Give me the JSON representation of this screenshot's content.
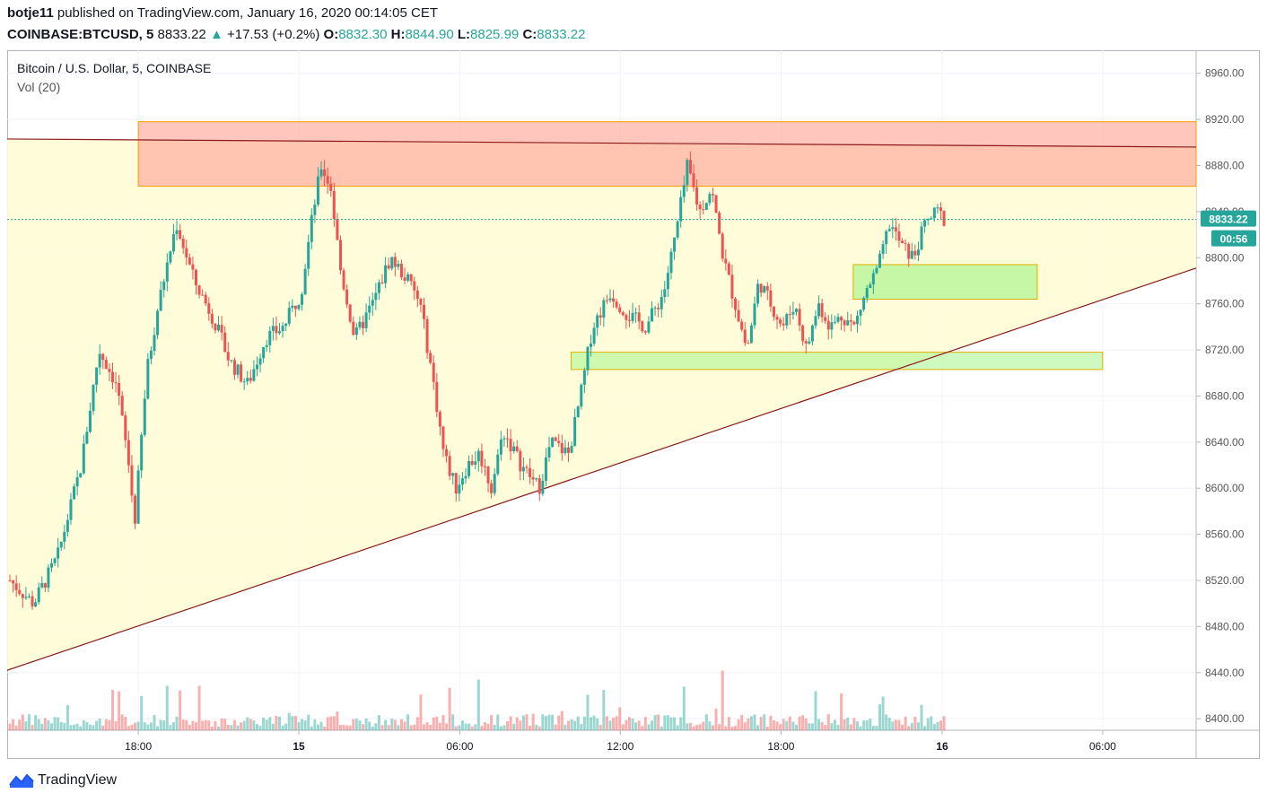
{
  "header": {
    "author": "botje11",
    "published_text": "published on TradingView.com, January 16, 2020 00:14:05 CET",
    "symbol": "COINBASE:BTCUSD, 5",
    "price": "8833.22",
    "change": "+17.53 (+0.2%)",
    "o_label": "O:",
    "o_value": "8832.30",
    "h_label": "H:",
    "h_value": "8844.90",
    "l_label": "L:",
    "l_value": "8825.99",
    "c_label": "C:",
    "c_value": "8833.22"
  },
  "legend": {
    "title": "Bitcoin / U.S. Dollar, 5, COINBASE",
    "indicator": "Vol (20)"
  },
  "price_badge": "8833.22",
  "timer_badge": "00:56",
  "footer": {
    "brand": "TradingView"
  },
  "colors": {
    "up": "#26a69a",
    "down": "#ef5350",
    "triangle_fill": "#fffcd6",
    "resistance_fill": "#ffb3a8",
    "support_fill": "#b3f598",
    "trendline": "#8b1a1a"
  },
  "chart_data": {
    "type": "candlestick",
    "title": "Bitcoin / U.S. Dollar, 5, COINBASE",
    "ylim": [
      8390,
      8980
    ],
    "y_ticks": [
      8400,
      8440,
      8480,
      8520,
      8560,
      8600,
      8640,
      8680,
      8720,
      8760,
      8800,
      8840,
      8880,
      8920,
      8960
    ],
    "x_ticks": [
      {
        "label": "18:00",
        "x": 0.1103
      },
      {
        "label": "15",
        "x": 0.2453
      },
      {
        "label": "06:00",
        "x": 0.3807
      },
      {
        "label": "12:00",
        "x": 0.5157
      },
      {
        "label": "18:00",
        "x": 0.6509
      },
      {
        "label": "16",
        "x": 0.7864
      },
      {
        "label": "06:00",
        "x": 0.9214
      }
    ],
    "price_path": [
      [
        0.0,
        8520
      ],
      [
        0.02,
        8500
      ],
      [
        0.04,
        8540
      ],
      [
        0.06,
        8620
      ],
      [
        0.075,
        8720
      ],
      [
        0.09,
        8690
      ],
      [
        0.1,
        8620
      ],
      [
        0.105,
        8570
      ],
      [
        0.115,
        8700
      ],
      [
        0.125,
        8760
      ],
      [
        0.14,
        8830
      ],
      [
        0.155,
        8780
      ],
      [
        0.17,
        8750
      ],
      [
        0.185,
        8710
      ],
      [
        0.2,
        8690
      ],
      [
        0.215,
        8730
      ],
      [
        0.23,
        8740
      ],
      [
        0.245,
        8770
      ],
      [
        0.255,
        8840
      ],
      [
        0.262,
        8880
      ],
      [
        0.27,
        8860
      ],
      [
        0.278,
        8790
      ],
      [
        0.29,
        8730
      ],
      [
        0.305,
        8760
      ],
      [
        0.32,
        8800
      ],
      [
        0.335,
        8780
      ],
      [
        0.345,
        8760
      ],
      [
        0.355,
        8700
      ],
      [
        0.365,
        8630
      ],
      [
        0.375,
        8600
      ],
      [
        0.385,
        8620
      ],
      [
        0.395,
        8630
      ],
      [
        0.405,
        8600
      ],
      [
        0.415,
        8650
      ],
      [
        0.43,
        8620
      ],
      [
        0.445,
        8600
      ],
      [
        0.455,
        8640
      ],
      [
        0.47,
        8630
      ],
      [
        0.48,
        8680
      ],
      [
        0.49,
        8740
      ],
      [
        0.505,
        8770
      ],
      [
        0.52,
        8750
      ],
      [
        0.535,
        8740
      ],
      [
        0.55,
        8770
      ],
      [
        0.56,
        8820
      ],
      [
        0.57,
        8880
      ],
      [
        0.58,
        8840
      ],
      [
        0.59,
        8860
      ],
      [
        0.6,
        8800
      ],
      [
        0.61,
        8760
      ],
      [
        0.62,
        8720
      ],
      [
        0.63,
        8780
      ],
      [
        0.64,
        8760
      ],
      [
        0.65,
        8740
      ],
      [
        0.66,
        8760
      ],
      [
        0.67,
        8720
      ],
      [
        0.68,
        8760
      ],
      [
        0.69,
        8740
      ],
      [
        0.7,
        8750
      ],
      [
        0.71,
        8740
      ],
      [
        0.72,
        8770
      ],
      [
        0.73,
        8790
      ],
      [
        0.74,
        8830
      ],
      [
        0.75,
        8810
      ],
      [
        0.76,
        8800
      ],
      [
        0.77,
        8830
      ],
      [
        0.78,
        8840
      ],
      [
        0.786,
        8833
      ]
    ],
    "annotations": {
      "resistance_zone": {
        "y": [
          8862,
          8918
        ],
        "x": [
          0.1103,
          1.0
        ]
      },
      "support_zone_1": {
        "y": [
          8764,
          8794
        ],
        "x": [
          0.7116,
          0.8664
        ]
      },
      "support_zone_2": {
        "y": [
          8703,
          8718
        ],
        "x": [
          0.4743,
          0.9214
        ]
      },
      "trendline_top": {
        "points": [
          [
            0.0,
            8903
          ],
          [
            1.0,
            8896
          ]
        ]
      },
      "trendline_bottom": {
        "points": [
          [
            0.0,
            8442
          ],
          [
            1.0,
            8791
          ]
        ]
      },
      "triangle_area": true
    }
  }
}
